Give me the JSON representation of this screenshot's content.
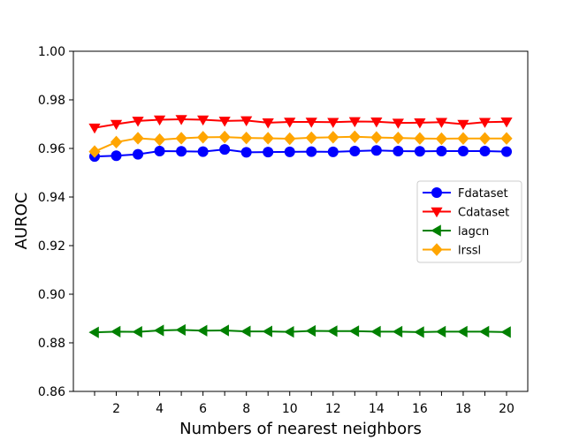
{
  "chart_data": {
    "type": "line",
    "title": "",
    "xlabel": "Numbers of nearest neighbors",
    "ylabel": "AUROC",
    "xlim": [
      0,
      21
    ],
    "ylim": [
      0.86,
      1.0
    ],
    "x": [
      1,
      2,
      3,
      4,
      5,
      6,
      7,
      8,
      9,
      10,
      11,
      12,
      13,
      14,
      15,
      16,
      17,
      18,
      19,
      20
    ],
    "xticks": [
      2,
      4,
      6,
      8,
      10,
      12,
      14,
      16,
      18,
      20
    ],
    "xtick_labels": [
      "2",
      "4",
      "6",
      "8",
      "10",
      "12",
      "14",
      "16",
      "18",
      "20"
    ],
    "yticks": [
      0.86,
      0.88,
      0.9,
      0.92,
      0.94,
      0.96,
      0.98,
      1.0
    ],
    "ytick_labels": [
      "0.86",
      "0.88",
      "0.90",
      "0.92",
      "0.94",
      "0.96",
      "0.98",
      "1.00"
    ],
    "grid": false,
    "legend_position": "center-right",
    "series": [
      {
        "name": "Fdataset",
        "color": "#0000ff",
        "marker": "circle",
        "values": [
          0.9567,
          0.957,
          0.9576,
          0.9589,
          0.9588,
          0.9587,
          0.9596,
          0.9584,
          0.9585,
          0.9586,
          0.9587,
          0.9586,
          0.9589,
          0.9592,
          0.9589,
          0.9588,
          0.9589,
          0.9589,
          0.9589,
          0.9587
        ]
      },
      {
        "name": "Cdataset",
        "color": "#ff0000",
        "marker": "triangle-down",
        "values": [
          0.9685,
          0.97,
          0.9713,
          0.9718,
          0.972,
          0.9718,
          0.9713,
          0.9715,
          0.9706,
          0.9709,
          0.9709,
          0.9708,
          0.9711,
          0.971,
          0.9705,
          0.9706,
          0.9708,
          0.97,
          0.9708,
          0.971
        ]
      },
      {
        "name": "lagcn",
        "color": "#008000",
        "marker": "triangle-left",
        "values": [
          0.8843,
          0.8846,
          0.8845,
          0.8851,
          0.8853,
          0.885,
          0.8851,
          0.8847,
          0.8847,
          0.8845,
          0.8849,
          0.8848,
          0.8848,
          0.8846,
          0.8846,
          0.8844,
          0.8846,
          0.8846,
          0.8846,
          0.8844
        ]
      },
      {
        "name": "lrssl",
        "color": "#ffa500",
        "marker": "diamond",
        "values": [
          0.9587,
          0.9626,
          0.9642,
          0.9636,
          0.9642,
          0.9646,
          0.9647,
          0.9643,
          0.9642,
          0.964,
          0.9644,
          0.9646,
          0.9648,
          0.9645,
          0.9643,
          0.9641,
          0.964,
          0.9641,
          0.9641,
          0.9641
        ]
      }
    ]
  }
}
